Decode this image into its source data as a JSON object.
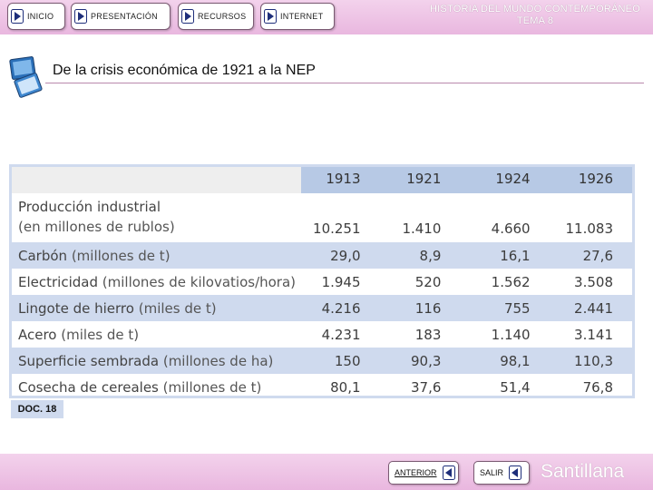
{
  "header": {
    "nav": [
      {
        "label": "INICIO"
      },
      {
        "label": "PRESENTACIÓN"
      },
      {
        "label": "RECURSOS"
      },
      {
        "label": "INTERNET"
      }
    ],
    "title_line1": "HISTORIA DEL MUNDO CONTEMPORÁNEO",
    "title_line2": "TEMA 8"
  },
  "slide": {
    "title": "De la crisis económica de 1921 a la NEP"
  },
  "table": {
    "years": [
      "1913",
      "1921",
      "1924",
      "1926"
    ],
    "rows": [
      {
        "label": "Producción industrial",
        "unit": "(en millones de rublos)",
        "values": [
          "10.251",
          "1.410",
          "4.660",
          "11.083"
        ]
      },
      {
        "label": "Carbón",
        "unit": "(millones de t)",
        "values": [
          "29,0",
          "8,9",
          "16,1",
          "27,6"
        ]
      },
      {
        "label": "Electricidad",
        "unit": "(millones de kilovatios/hora)",
        "values": [
          "1.945",
          "520",
          "1.562",
          "3.508"
        ]
      },
      {
        "label": "Lingote de hierro",
        "unit": "(miles de t)",
        "values": [
          "4.216",
          "116",
          "755",
          "2.441"
        ]
      },
      {
        "label": "Acero",
        "unit": "(miles de t)",
        "values": [
          "4.231",
          "183",
          "1.140",
          "3.141"
        ]
      },
      {
        "label": "Superficie sembrada",
        "unit": "(millones de ha)",
        "values": [
          "150",
          "90,3",
          "98,1",
          "110,3"
        ]
      },
      {
        "label": "Cosecha de cereales",
        "unit": "(millones de t)",
        "values": [
          "80,1",
          "37,6",
          "51,4",
          "76,8"
        ]
      }
    ]
  },
  "doc_label": "DOC. 18",
  "footer": {
    "prev_label": "ANTERIOR",
    "exit_label": "SALIR",
    "brand": "Santillana"
  },
  "colors": {
    "bar": "#e9b7df",
    "header_row": "#b7c9e5",
    "stripe": "#cfdaee",
    "arrow_fill": "#1e2e7a"
  },
  "icons": [
    "play-arrow-icon",
    "back-arrow-icon",
    "slide-icon"
  ]
}
